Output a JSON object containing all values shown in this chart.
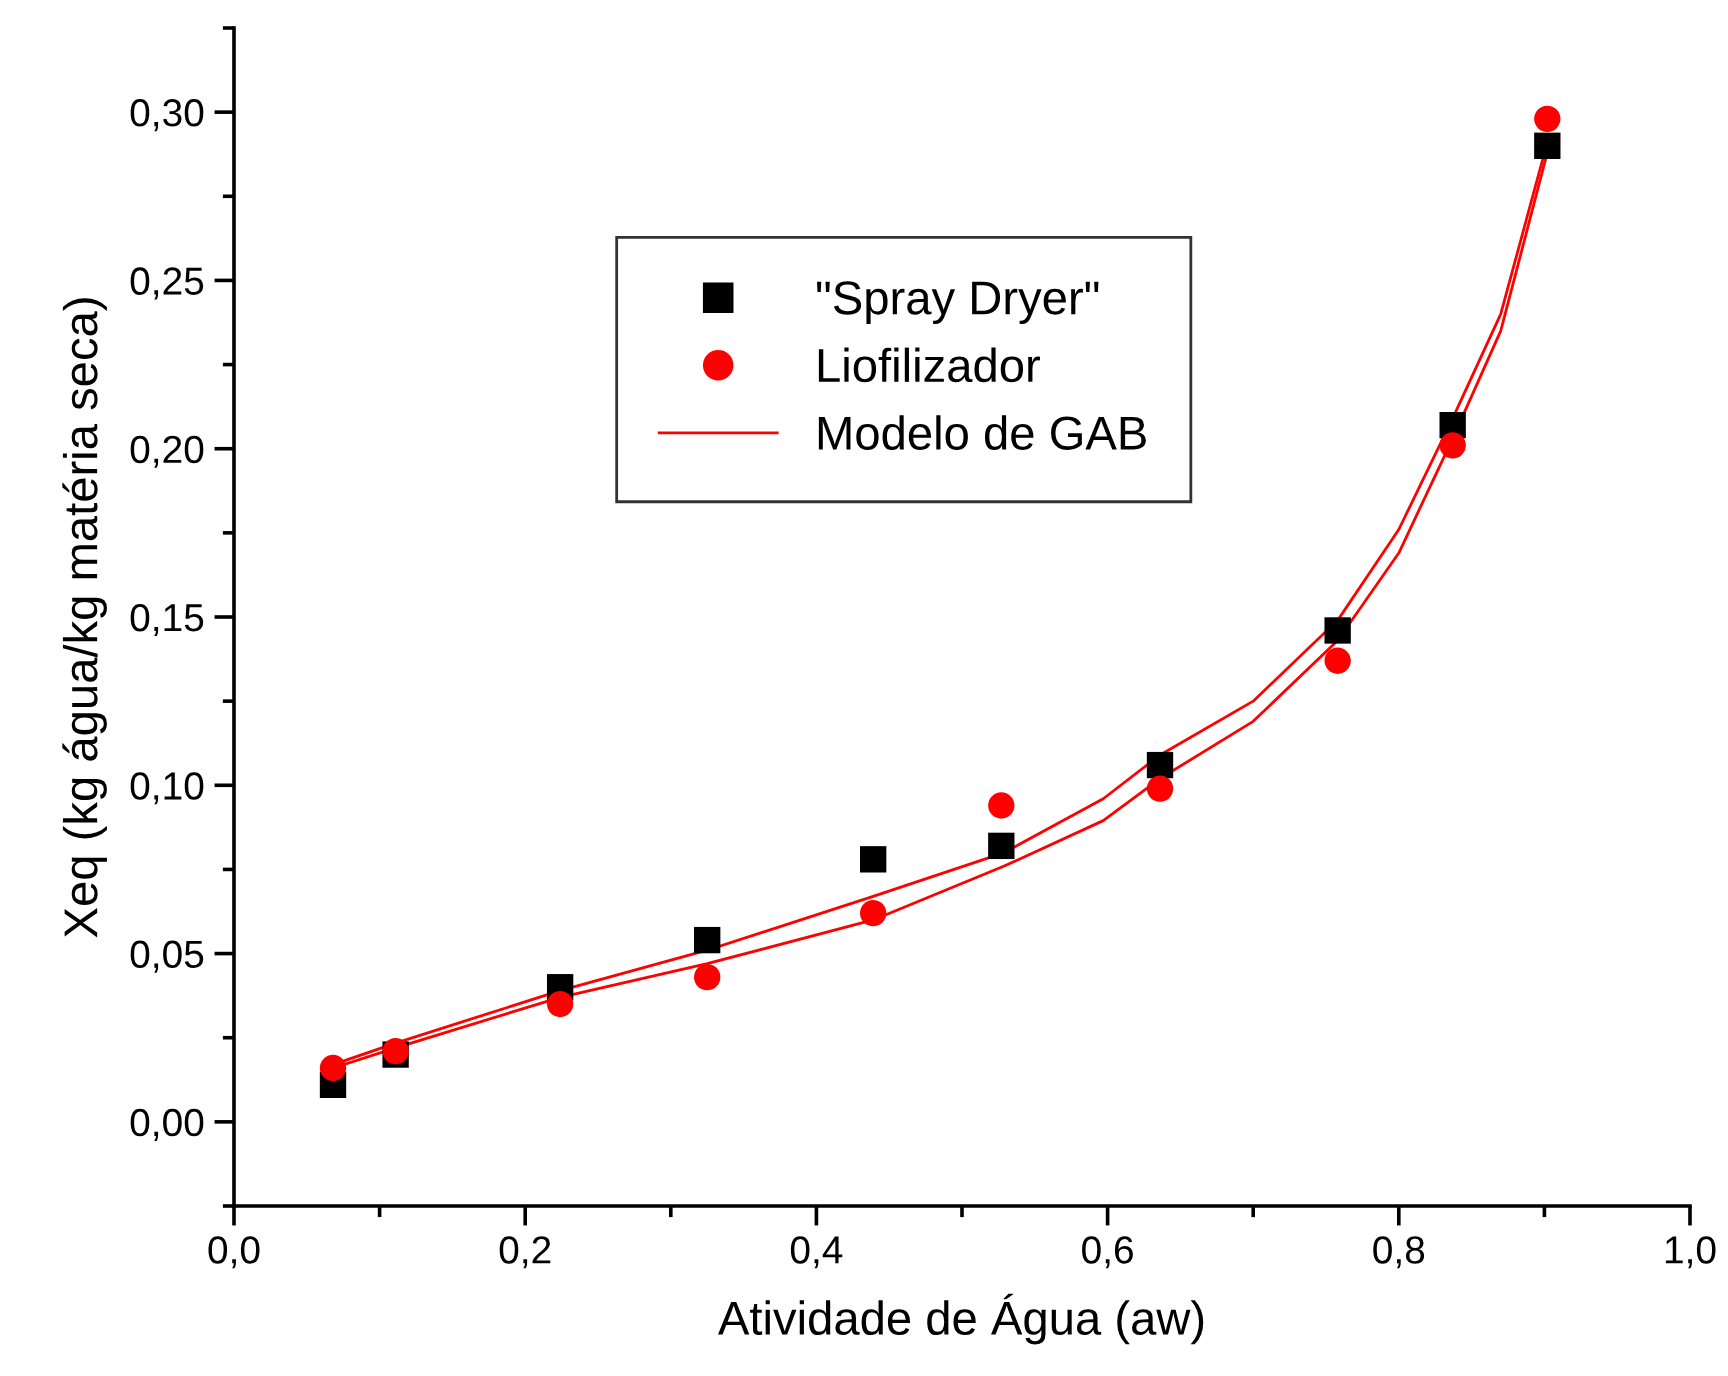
{
  "chart_data": {
    "type": "scatter",
    "xlabel": "Atividade de Água (aw)",
    "ylabel": "Xeq (kg água/kg matéria seca)",
    "series": [
      {
        "name": "\"Spray Dryer\"",
        "marker": "square",
        "color": "#000000",
        "x": [
          0.068,
          0.111,
          0.224,
          0.325,
          0.439,
          0.527,
          0.636,
          0.758,
          0.837,
          0.902
        ],
        "values": [
          0.011,
          0.02,
          0.04,
          0.054,
          0.078,
          0.082,
          0.106,
          0.146,
          0.207,
          0.29
        ]
      },
      {
        "name": "Liofilizador",
        "marker": "circle",
        "color": "#ff0000",
        "x": [
          0.068,
          0.111,
          0.224,
          0.325,
          0.439,
          0.527,
          0.636,
          0.758,
          0.837,
          0.902
        ],
        "values": [
          0.016,
          0.021,
          0.035,
          0.043,
          0.062,
          0.094,
          0.099,
          0.137,
          0.201,
          0.298
        ]
      },
      {
        "name": "Modelo de GAB",
        "type": "line",
        "marker": "none",
        "color": "#ff0000",
        "x": [
          0.068,
          0.111,
          0.224,
          0.325,
          0.439,
          0.529,
          0.597,
          0.636,
          0.7,
          0.758,
          0.8,
          0.837,
          0.87,
          0.902
        ],
        "values": [
          0.017,
          0.0234,
          0.039,
          0.051,
          0.067,
          0.08,
          0.096,
          0.109,
          0.125,
          0.149,
          0.176,
          0.209,
          0.24,
          0.291
        ]
      },
      {
        "type": "line",
        "marker": "none",
        "color": "#ff0000",
        "x": [
          0.068,
          0.111,
          0.224,
          0.325,
          0.439,
          0.529,
          0.597,
          0.636,
          0.7,
          0.758,
          0.8,
          0.837,
          0.87,
          0.902
        ],
        "values": [
          0.016,
          0.022,
          0.037,
          0.047,
          0.06,
          0.076,
          0.0895,
          0.102,
          0.119,
          0.143,
          0.169,
          0.203,
          0.235,
          0.288
        ]
      }
    ],
    "xlim": [
      0.0,
      1.0
    ],
    "ylim": [
      -0.025,
      0.325
    ],
    "xticks": [
      {
        "value": 0.0,
        "label": "0,0"
      },
      {
        "value": 0.1,
        "label": null
      },
      {
        "value": 0.2,
        "label": "0,2"
      },
      {
        "value": 0.3,
        "label": null
      },
      {
        "value": 0.4,
        "label": "0,4"
      },
      {
        "value": 0.5,
        "label": null
      },
      {
        "value": 0.6,
        "label": "0,6"
      },
      {
        "value": 0.7,
        "label": null
      },
      {
        "value": 0.8,
        "label": "0,8"
      },
      {
        "value": 0.9,
        "label": null
      },
      {
        "value": 1.0,
        "label": "1,0"
      }
    ],
    "yticks": [
      {
        "value": -0.025,
        "label": null
      },
      {
        "value": 0.0,
        "label": "0,00"
      },
      {
        "value": 0.025,
        "label": null
      },
      {
        "value": 0.05,
        "label": "0,05"
      },
      {
        "value": 0.075,
        "label": null
      },
      {
        "value": 0.1,
        "label": "0,10"
      },
      {
        "value": 0.125,
        "label": null
      },
      {
        "value": 0.15,
        "label": "0,15"
      },
      {
        "value": 0.175,
        "label": null
      },
      {
        "value": 0.2,
        "label": "0,20"
      },
      {
        "value": 0.225,
        "label": null
      },
      {
        "value": 0.25,
        "label": "0,25"
      },
      {
        "value": 0.275,
        "label": null
      },
      {
        "value": 0.3,
        "label": "0,30"
      },
      {
        "value": 0.325,
        "label": null
      }
    ],
    "grid": false,
    "legend": "center"
  }
}
